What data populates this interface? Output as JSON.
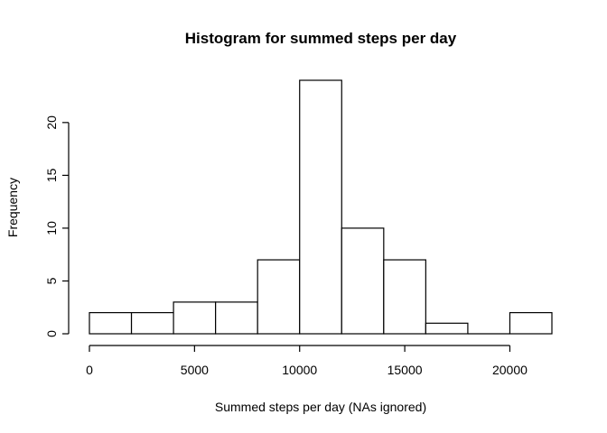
{
  "chart_data": {
    "type": "bar",
    "title": "Histogram for summed steps per day",
    "xlabel": "Summed steps per day (NAs ignored)",
    "ylabel": "Frequency",
    "bins": [
      {
        "from": 0,
        "to": 2000,
        "count": 2
      },
      {
        "from": 2000,
        "to": 4000,
        "count": 2
      },
      {
        "from": 4000,
        "to": 6000,
        "count": 3
      },
      {
        "from": 6000,
        "to": 8000,
        "count": 3
      },
      {
        "from": 8000,
        "to": 10000,
        "count": 7
      },
      {
        "from": 10000,
        "to": 12000,
        "count": 24
      },
      {
        "from": 12000,
        "to": 14000,
        "count": 10
      },
      {
        "from": 14000,
        "to": 16000,
        "count": 7
      },
      {
        "from": 16000,
        "to": 18000,
        "count": 1
      },
      {
        "from": 18000,
        "to": 20000,
        "count": 0
      },
      {
        "from": 20000,
        "to": 22000,
        "count": 2
      }
    ],
    "xlim": [
      0,
      22000
    ],
    "ylim": [
      0,
      24
    ],
    "xticks": [
      0,
      5000,
      10000,
      15000,
      20000
    ],
    "yticks": [
      0,
      5,
      10,
      15,
      20
    ],
    "grid": false,
    "legend": "none"
  }
}
